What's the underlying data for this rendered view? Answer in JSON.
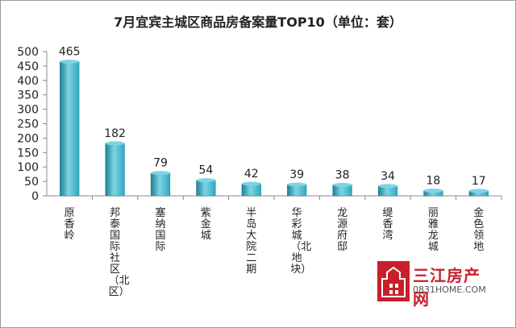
{
  "chart_data": {
    "type": "bar",
    "title": "7月宜宾主城区商品房备案量TOP10（单位：套）",
    "categories": [
      "原香岭",
      "邦泰国际社区（北区）",
      "塞纳国际",
      "紫金城",
      "半岛大院二期",
      "华彩城（北地块）",
      "龙源府邸",
      "缇香湾",
      "丽雅龙城",
      "金色领地"
    ],
    "values": [
      465,
      182,
      79,
      54,
      42,
      39,
      38,
      34,
      18,
      17
    ],
    "xlabel": "",
    "ylabel": "",
    "ylim": [
      0,
      500
    ],
    "yticks": [
      0,
      50,
      100,
      150,
      200,
      250,
      300,
      350,
      400,
      450,
      500
    ],
    "grid": false,
    "legend": "none",
    "bar_color": "#2fa9bf",
    "bar_color_light": "#7fd4e4",
    "bar_color_dark": "#1b7f92"
  },
  "watermark": {
    "brand": "三江房产网",
    "url": "0831HOME.COM",
    "logo_color": "#c81f2a"
  }
}
